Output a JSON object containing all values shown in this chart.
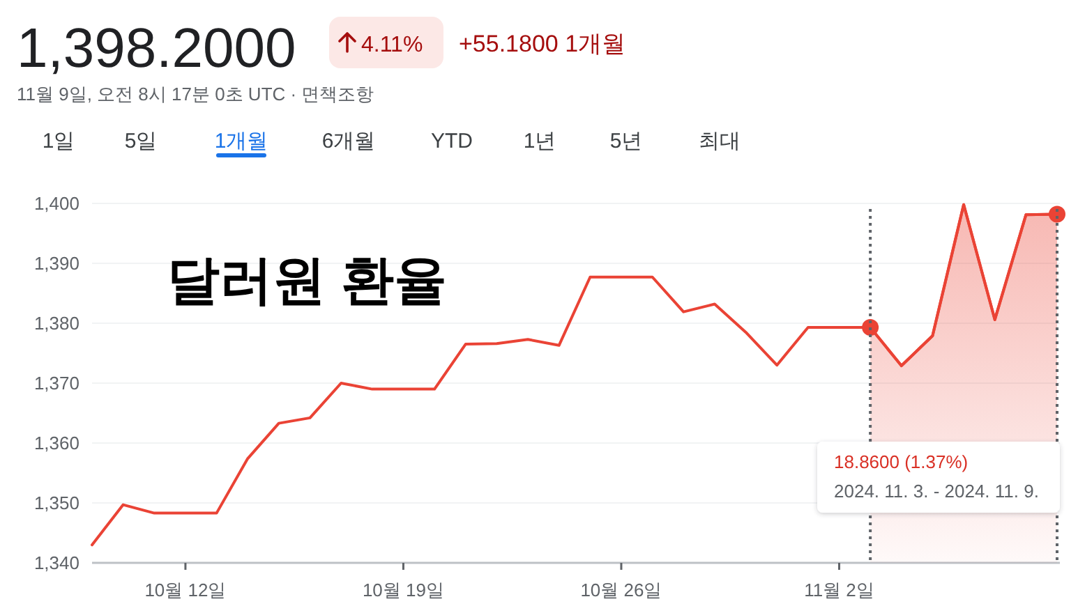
{
  "chart_data": {
    "type": "line",
    "title": "달러원 환율",
    "subtitle": "11월 9일, 오전 8시 17분 0초 UTC · 면책조항",
    "annotations": [
      "1,398.2000",
      "4.11%",
      "+55.1800 1개월",
      "1일",
      "5일",
      "1개월",
      "6개월",
      "YTD",
      "1년",
      "5년",
      "최대",
      "18.8600 (1.37%)",
      "2024. 11. 3. - 2024. 11. 9."
    ],
    "x": [
      "2024-10-09",
      "2024-10-10",
      "2024-10-11",
      "2024-10-12",
      "2024-10-13",
      "2024-10-14",
      "2024-10-15",
      "2024-10-16",
      "2024-10-17",
      "2024-10-18",
      "2024-10-19",
      "2024-10-20",
      "2024-10-21",
      "2024-10-22",
      "2024-10-23",
      "2024-10-24",
      "2024-10-25",
      "2024-10-26",
      "2024-10-27",
      "2024-10-28",
      "2024-10-29",
      "2024-10-30",
      "2024-10-31",
      "2024-11-01",
      "2024-11-02",
      "2024-11-03",
      "2024-11-04",
      "2024-11-05",
      "2024-11-06",
      "2024-11-07",
      "2024-11-08",
      "2024-11-09"
    ],
    "series": [
      {
        "color": "#ea4335",
        "values": [
          1343.0,
          1349.7,
          1348.3,
          1348.3,
          1348.3,
          1357.4,
          1363.3,
          1364.2,
          1370.0,
          1369.0,
          1369.0,
          1369.0,
          1376.5,
          1376.6,
          1377.3,
          1376.3,
          1387.7,
          1387.7,
          1387.7,
          1381.9,
          1383.2,
          1378.5,
          1373.0,
          1379.3,
          1379.3,
          1379.3,
          1372.9,
          1377.9,
          1399.8,
          1380.6,
          1398.1,
          1398.2
        ]
      },
      {
        "type": "area",
        "color": "#ea4335",
        "x": [
          "2024-11-03",
          "2024-11-04",
          "2024-11-05",
          "2024-11-06",
          "2024-11-07",
          "2024-11-08",
          "2024-11-09"
        ],
        "values": [
          1379.3,
          1372.9,
          1377.9,
          1399.8,
          1380.6,
          1398.1,
          1398.2
        ]
      },
      {
        "type": "scatter",
        "color": "#ea4335",
        "marker": "circle",
        "x": [
          "2024-11-03",
          "2024-11-09"
        ],
        "values": [
          1379.3,
          1398.2
        ]
      }
    ],
    "ref_lines": [
      {
        "axis": "x",
        "value": "2024-11-03",
        "color": "#5f6368",
        "line_style": "dotted"
      },
      {
        "axis": "x",
        "value": "2024-11-09",
        "color": "#5f6368",
        "line_style": "dotted"
      }
    ],
    "xlim": [
      "2024-10-09",
      "2024-11-09"
    ],
    "xticks": [
      {
        "value": "2024-10-12",
        "label": "10월 12일"
      },
      {
        "value": "2024-10-19",
        "label": "10월 19일"
      },
      {
        "value": "2024-10-26",
        "label": "10월 26일"
      },
      {
        "value": "2024-11-02",
        "label": "11월 2일"
      }
    ],
    "ylim": [
      1340,
      1400
    ],
    "yticks": [
      {
        "value": 1340,
        "label": "1,340"
      },
      {
        "value": 1350,
        "label": "1,350"
      },
      {
        "value": 1360,
        "label": "1,360"
      },
      {
        "value": 1370,
        "label": "1,370"
      },
      {
        "value": 1380,
        "label": "1,380"
      },
      {
        "value": 1390,
        "label": "1,390"
      },
      {
        "value": 1400,
        "label": "1,400"
      }
    ],
    "grid": "y"
  }
}
